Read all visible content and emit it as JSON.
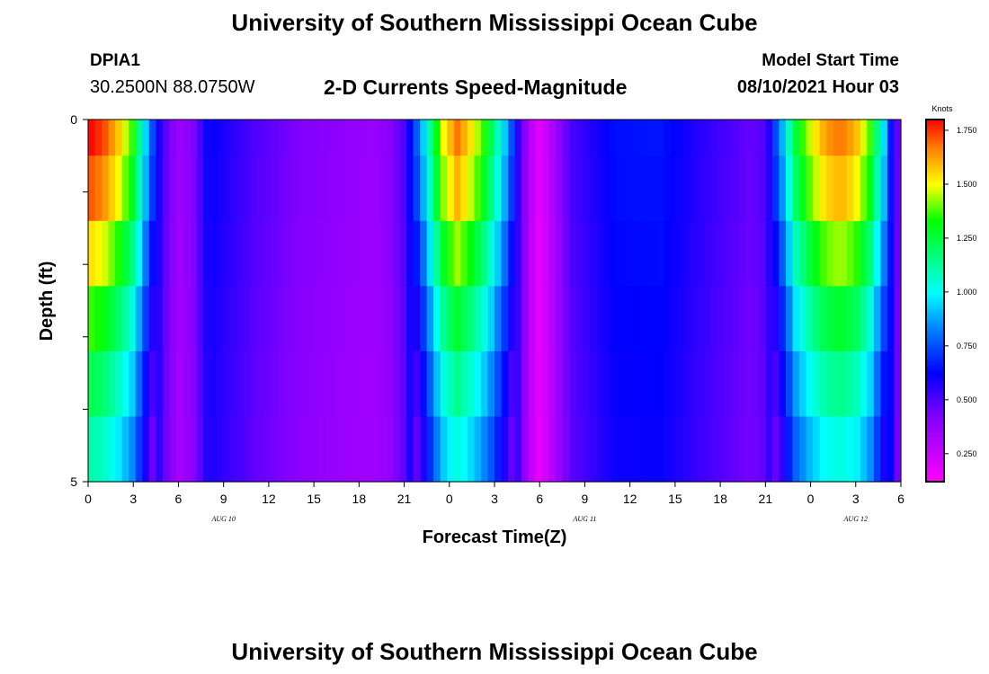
{
  "header": {
    "title": "University of Southern Mississippi Ocean Cube",
    "station": "DPIA1",
    "coords": "30.2500N  88.0750W",
    "subtitle": "2-D Currents Speed-Magnitude",
    "model_start_label": "Model Start Time",
    "model_start_value": "08/10/2021 Hour 03"
  },
  "footer": {
    "title": "University of Southern Mississippi Ocean Cube"
  },
  "chart_data": {
    "type": "heatmap",
    "title": "2-D Currents Speed-Magnitude",
    "xlabel": "Forecast Time(Z)",
    "ylabel": "Depth (ft)",
    "x_tick_labels": [
      "0",
      "3",
      "6",
      "9",
      "12",
      "15",
      "18",
      "21",
      "0",
      "3",
      "6",
      "9",
      "12",
      "15",
      "18",
      "21",
      "0",
      "3",
      "6"
    ],
    "day_labels": [
      "AUG  10",
      "AUG  11",
      "AUG  12"
    ],
    "y_tick_labels": [
      "0",
      "5"
    ],
    "ylim": [
      0,
      5
    ],
    "colorbar_units": "Knots",
    "colorbar_ticks": [
      1.75,
      1.5,
      1.25,
      1.0,
      0.75,
      0.5,
      0.25
    ],
    "colorbar_tick_labels": [
      "1.750",
      "1.500",
      "1.250",
      "1.000",
      "0.750",
      "0.500",
      "0.250"
    ],
    "color_range": [
      0.12,
      1.8
    ],
    "hours_from_start_range": [
      0,
      54
    ],
    "depth_layers": 5,
    "time_profile": [
      [
        0,
        1.72
      ],
      [
        1,
        1.65
      ],
      [
        2,
        1.5
      ],
      [
        3,
        1.28
      ],
      [
        3.7,
        0.95
      ],
      [
        4.3,
        0.7
      ],
      [
        5,
        0.5
      ],
      [
        6,
        0.35
      ],
      [
        7,
        0.42
      ],
      [
        8,
        0.62
      ],
      [
        9,
        0.58
      ],
      [
        11,
        0.5
      ],
      [
        14,
        0.42
      ],
      [
        17,
        0.38
      ],
      [
        19,
        0.36
      ],
      [
        20,
        0.4
      ],
      [
        21,
        0.5
      ],
      [
        22,
        0.78
      ],
      [
        22.8,
        1.1
      ],
      [
        23.5,
        1.4
      ],
      [
        24.5,
        1.6
      ],
      [
        25.5,
        1.45
      ],
      [
        26.5,
        1.25
      ],
      [
        27.5,
        0.95
      ],
      [
        28.3,
        0.65
      ],
      [
        29.3,
        0.3
      ],
      [
        30,
        0.18
      ],
      [
        30.8,
        0.3
      ],
      [
        32,
        0.5
      ],
      [
        35,
        0.64
      ],
      [
        38,
        0.65
      ],
      [
        41,
        0.55
      ],
      [
        44,
        0.46
      ],
      [
        45,
        0.5
      ],
      [
        46,
        0.8
      ],
      [
        47,
        1.2
      ],
      [
        48,
        1.4
      ],
      [
        49,
        1.55
      ],
      [
        50,
        1.6
      ],
      [
        51,
        1.52
      ],
      [
        52,
        1.3
      ],
      [
        53,
        0.85
      ],
      [
        53.5,
        0.55
      ],
      [
        54,
        0.4
      ]
    ],
    "depth_factors": [
      1.0,
      0.9,
      0.8,
      0.72,
      0.65
    ]
  }
}
